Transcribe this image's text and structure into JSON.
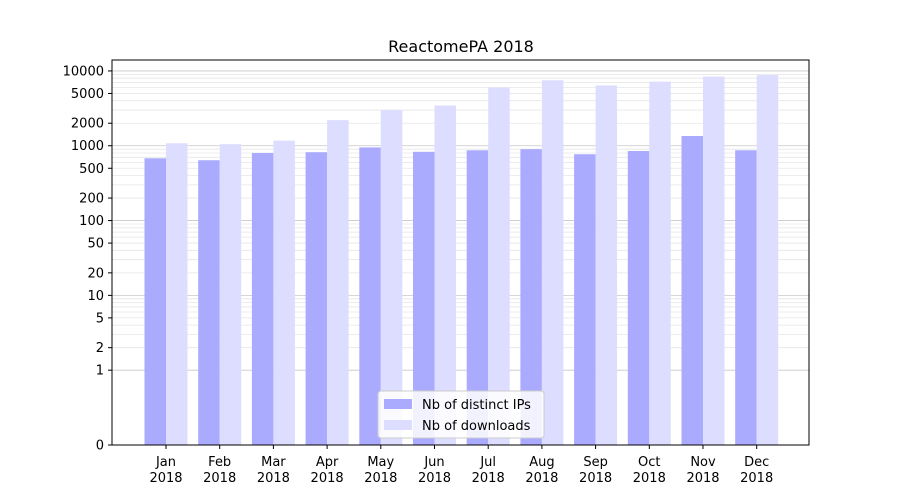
{
  "chart_data": {
    "type": "bar",
    "title": "ReactomePA 2018",
    "xlabel": "",
    "ylabel": "",
    "yscale": "symlog",
    "ylim": [
      0,
      14000
    ],
    "yticks": [
      0,
      1,
      2,
      5,
      10,
      20,
      50,
      100,
      200,
      500,
      1000,
      2000,
      5000,
      10000
    ],
    "yticklabels": [
      "0",
      "1",
      "2",
      "5",
      "10",
      "20",
      "50",
      "100",
      "200",
      "500",
      "1000",
      "2000",
      "5000",
      "10000"
    ],
    "categories": [
      "Jan\n2018",
      "Feb\n2018",
      "Mar\n2018",
      "Apr\n2018",
      "May\n2018",
      "Jun\n2018",
      "Jul\n2018",
      "Aug\n2018",
      "Sep\n2018",
      "Oct\n2018",
      "Nov\n2018",
      "Dec\n2018"
    ],
    "grid": true,
    "legend_position": "bottom-center",
    "series": [
      {
        "name": "Nb of distinct IPs",
        "color": "#aaaaff",
        "values": [
          680,
          640,
          800,
          820,
          950,
          830,
          870,
          900,
          770,
          850,
          1350,
          870
        ]
      },
      {
        "name": "Nb of downloads",
        "color": "#ddddff",
        "values": [
          1080,
          1050,
          1170,
          2200,
          3000,
          3450,
          6000,
          7500,
          6400,
          7200,
          8400,
          8800
        ]
      }
    ]
  }
}
